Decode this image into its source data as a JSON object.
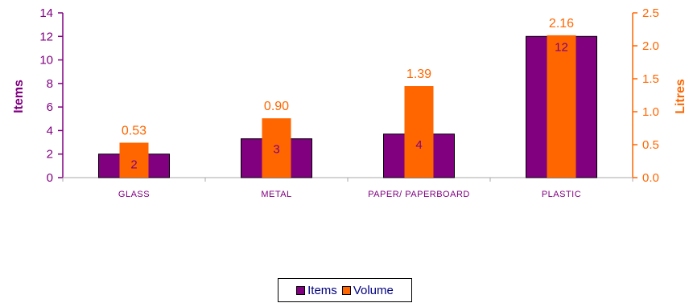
{
  "chart_data": {
    "type": "bar",
    "categories": [
      "GLASS",
      "METAL",
      "PAPER/ PAPERBOARD",
      "PLASTIC"
    ],
    "series": [
      {
        "name": "Items",
        "axis": "left",
        "values": [
          2,
          3.3,
          3.7,
          12
        ],
        "data_labels": [
          "2",
          "3",
          "4",
          "12"
        ],
        "color": "#800080"
      },
      {
        "name": "Volume",
        "axis": "right",
        "values": [
          0.53,
          0.9,
          1.39,
          2.16
        ],
        "data_labels": [
          "0.53",
          "0.90",
          "1.39",
          "2.16"
        ],
        "color": "#FF6600"
      }
    ],
    "ylabel": "Items",
    "ylabel_right": "Litres",
    "ylim": [
      0,
      14
    ],
    "ylim_right": [
      0,
      2.5
    ],
    "yticks": [
      "0",
      "2",
      "4",
      "6",
      "8",
      "10",
      "12",
      "14"
    ],
    "yticks_right": [
      "0.0",
      "0.5",
      "1.0",
      "1.5",
      "2.0",
      "2.5"
    ],
    "grid": false,
    "legend_position": "bottom"
  },
  "legend": [
    {
      "label": "Items",
      "color": "#800080"
    },
    {
      "label": "Volume",
      "color": "#FF6600"
    }
  ]
}
